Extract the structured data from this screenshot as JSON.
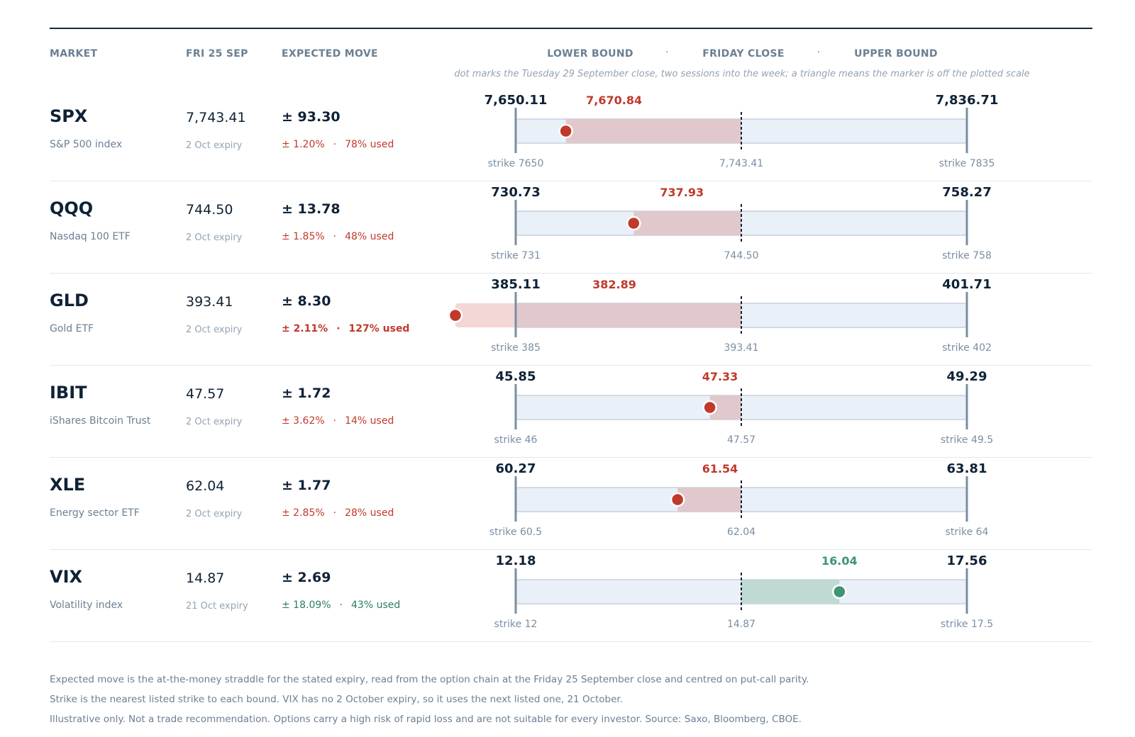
{
  "header": {
    "market": "MARKET",
    "date": "FRI 25 SEP",
    "expected_move": "EXPECTED MOVE",
    "lower_bound": "LOWER BOUND",
    "friday_close": "FRIDAY CLOSE",
    "upper_bound": "UPPER BOUND",
    "separator": "·",
    "note": "dot marks the Tuesday 29 September close, two sessions into the week; a triangle means the marker is off the plotted scale"
  },
  "colors": {
    "navy": "#0f2236",
    "muted": "#7a8ea3",
    "track_fill": "#eaf0f8",
    "track_border": "#c5d1df",
    "red": "#c0392b",
    "red_range": "#e0c8cc",
    "red_overflow": "#f3d6d6",
    "green": "#3e9474",
    "green_range": "#c0d9d5"
  },
  "markets": [
    {
      "ticker": "SPX",
      "name": "S&P 500 index",
      "close": "7,743.41",
      "expiry": "2 Oct expiry",
      "move": "± 93.30",
      "move_pct": "± 1.20%",
      "used": "78% used",
      "tone": "red",
      "emphasis": false,
      "lower_label": "7,650.11",
      "upper_label": "7,836.71",
      "marker_label": "7,670.84",
      "lower_strike": "strike 7650",
      "close_label": "7,743.41",
      "upper_strike": "strike 7835",
      "lower": 7650.11,
      "upper": 7836.71,
      "close_value": 7743.41,
      "marker": 7670.84
    },
    {
      "ticker": "QQQ",
      "name": "Nasdaq 100 ETF",
      "close": "744.50",
      "expiry": "2 Oct expiry",
      "move": "± 13.78",
      "move_pct": "± 1.85%",
      "used": "48% used",
      "tone": "red",
      "emphasis": false,
      "lower_label": "730.73",
      "upper_label": "758.27",
      "marker_label": "737.93",
      "lower_strike": "strike 731",
      "close_label": "744.50",
      "upper_strike": "strike 758",
      "lower": 730.73,
      "upper": 758.27,
      "close_value": 744.5,
      "marker": 737.93
    },
    {
      "ticker": "GLD",
      "name": "Gold ETF",
      "close": "393.41",
      "expiry": "2 Oct expiry",
      "move": "± 8.30",
      "move_pct": "± 2.11%",
      "used": "127% used",
      "tone": "red",
      "emphasis": true,
      "lower_label": "385.11",
      "upper_label": "401.71",
      "marker_label": "382.89",
      "lower_strike": "strike 385",
      "close_label": "393.41",
      "upper_strike": "strike 402",
      "lower": 385.11,
      "upper": 401.71,
      "close_value": 393.41,
      "marker": 382.89
    },
    {
      "ticker": "IBIT",
      "name": "iShares Bitcoin Trust",
      "close": "47.57",
      "expiry": "2 Oct expiry",
      "move": "± 1.72",
      "move_pct": "± 3.62%",
      "used": "14% used",
      "tone": "red",
      "emphasis": false,
      "lower_label": "45.85",
      "upper_label": "49.29",
      "marker_label": "47.33",
      "lower_strike": "strike 46",
      "close_label": "47.57",
      "upper_strike": "strike 49.5",
      "lower": 45.85,
      "upper": 49.29,
      "close_value": 47.57,
      "marker": 47.33
    },
    {
      "ticker": "XLE",
      "name": "Energy sector ETF",
      "close": "62.04",
      "expiry": "2 Oct expiry",
      "move": "± 1.77",
      "move_pct": "± 2.85%",
      "used": "28% used",
      "tone": "red",
      "emphasis": false,
      "lower_label": "60.27",
      "upper_label": "63.81",
      "marker_label": "61.54",
      "lower_strike": "strike 60.5",
      "close_label": "62.04",
      "upper_strike": "strike 64",
      "lower": 60.27,
      "upper": 63.81,
      "close_value": 62.04,
      "marker": 61.54
    },
    {
      "ticker": "VIX",
      "name": "Volatility index",
      "close": "14.87",
      "expiry": "21 Oct expiry",
      "move": "± 2.69",
      "move_pct": "± 18.09%",
      "used": "43% used",
      "tone": "green",
      "emphasis": false,
      "lower_label": "12.18",
      "upper_label": "17.56",
      "marker_label": "16.04",
      "lower_strike": "strike 12",
      "close_label": "14.87",
      "upper_strike": "strike 17.5",
      "lower": 12.18,
      "upper": 17.56,
      "close_value": 14.87,
      "marker": 16.04
    }
  ],
  "footer": {
    "line1": "Expected move is the at-the-money straddle for the stated expiry, read from the option chain at the Friday 25 September close and centred on put-call parity.",
    "line2": "Strike is the nearest listed strike to each bound. VIX has no 2 October expiry, so it uses the next listed one, 21 October.",
    "line3": "Illustrative only. Not a trade recommendation. Options carry a high risk of rapid loss and are not suitable for every investor. Source: Saxo, Bloomberg, CBOE."
  },
  "chart_data": {
    "type": "range",
    "title": "",
    "x": "expected move range per market",
    "series": [
      {
        "category": "SPX",
        "lower": 7650.11,
        "close": 7743.41,
        "upper": 7836.71,
        "marker": 7670.84,
        "used_pct": 78
      },
      {
        "category": "QQQ",
        "lower": 730.73,
        "close": 744.5,
        "upper": 758.27,
        "marker": 737.93,
        "used_pct": 48
      },
      {
        "category": "GLD",
        "lower": 385.11,
        "close": 393.41,
        "upper": 401.71,
        "marker": 382.89,
        "used_pct": 127
      },
      {
        "category": "IBIT",
        "lower": 45.85,
        "close": 47.57,
        "upper": 49.29,
        "marker": 47.33,
        "used_pct": 14
      },
      {
        "category": "XLE",
        "lower": 60.27,
        "close": 62.04,
        "upper": 63.81,
        "marker": 61.54,
        "used_pct": 28
      },
      {
        "category": "VIX",
        "lower": 12.18,
        "close": 14.87,
        "upper": 17.56,
        "marker": 16.04,
        "used_pct": 43
      }
    ]
  }
}
